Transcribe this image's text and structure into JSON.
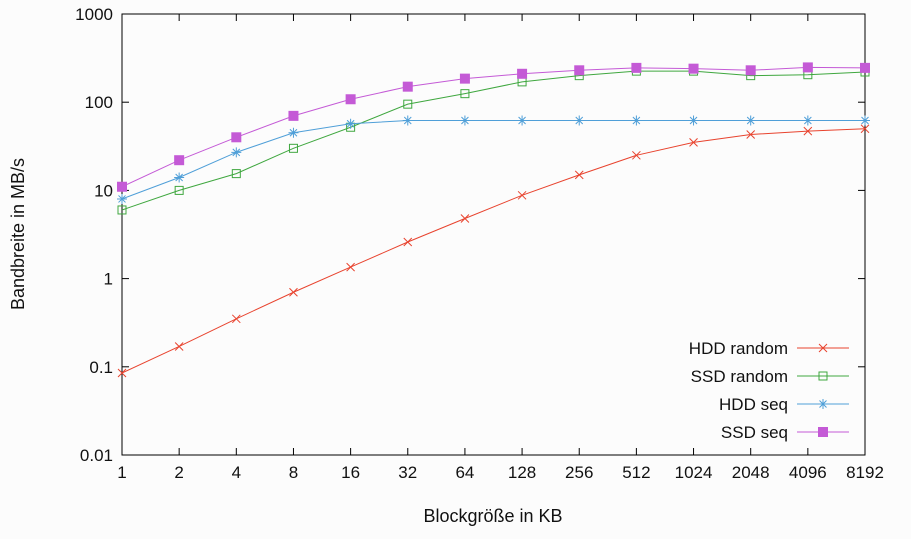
{
  "chart": {
    "xlabel": "Blockgröße in KB",
    "ylabel": "Bandbreite in MB/s",
    "background": "#fcfcfc",
    "text_color": "#111111",
    "y_ticks": [
      0.01,
      0.1,
      1,
      10,
      100,
      1000
    ],
    "y_tick_labels": [
      "0.01",
      "0.1",
      "1",
      "10",
      "100",
      "1000"
    ]
  },
  "chart_data": {
    "type": "line",
    "x": [
      1,
      2,
      4,
      8,
      16,
      32,
      64,
      128,
      256,
      512,
      1024,
      2048,
      4096,
      8192
    ],
    "xscale": "log2",
    "yscale": "log10",
    "ylim": [
      0.01,
      1000
    ],
    "grid": false,
    "legend_position": "inside-bottom-right",
    "series": [
      {
        "name": "HDD random",
        "color": "#e8432e",
        "marker": "x",
        "values": [
          0.085,
          0.17,
          0.35,
          0.7,
          1.35,
          2.6,
          4.8,
          8.8,
          15,
          25,
          35,
          43,
          47,
          50
        ]
      },
      {
        "name": "SSD random",
        "color": "#3fa73f",
        "marker": "open-square",
        "values": [
          6,
          10,
          15.5,
          30,
          52,
          95,
          125,
          170,
          200,
          225,
          225,
          200,
          205,
          220
        ]
      },
      {
        "name": "HDD seq",
        "color": "#4f9fd8",
        "marker": "asterisk",
        "values": [
          8,
          14,
          27,
          45,
          57,
          62,
          62,
          62,
          62,
          62,
          62,
          62,
          62,
          62
        ]
      },
      {
        "name": "SSD seq",
        "color": "#c45ad6",
        "marker": "filled-square",
        "values": [
          11,
          22,
          40,
          70,
          108,
          150,
          185,
          210,
          230,
          245,
          240,
          230,
          248,
          245
        ]
      }
    ]
  }
}
